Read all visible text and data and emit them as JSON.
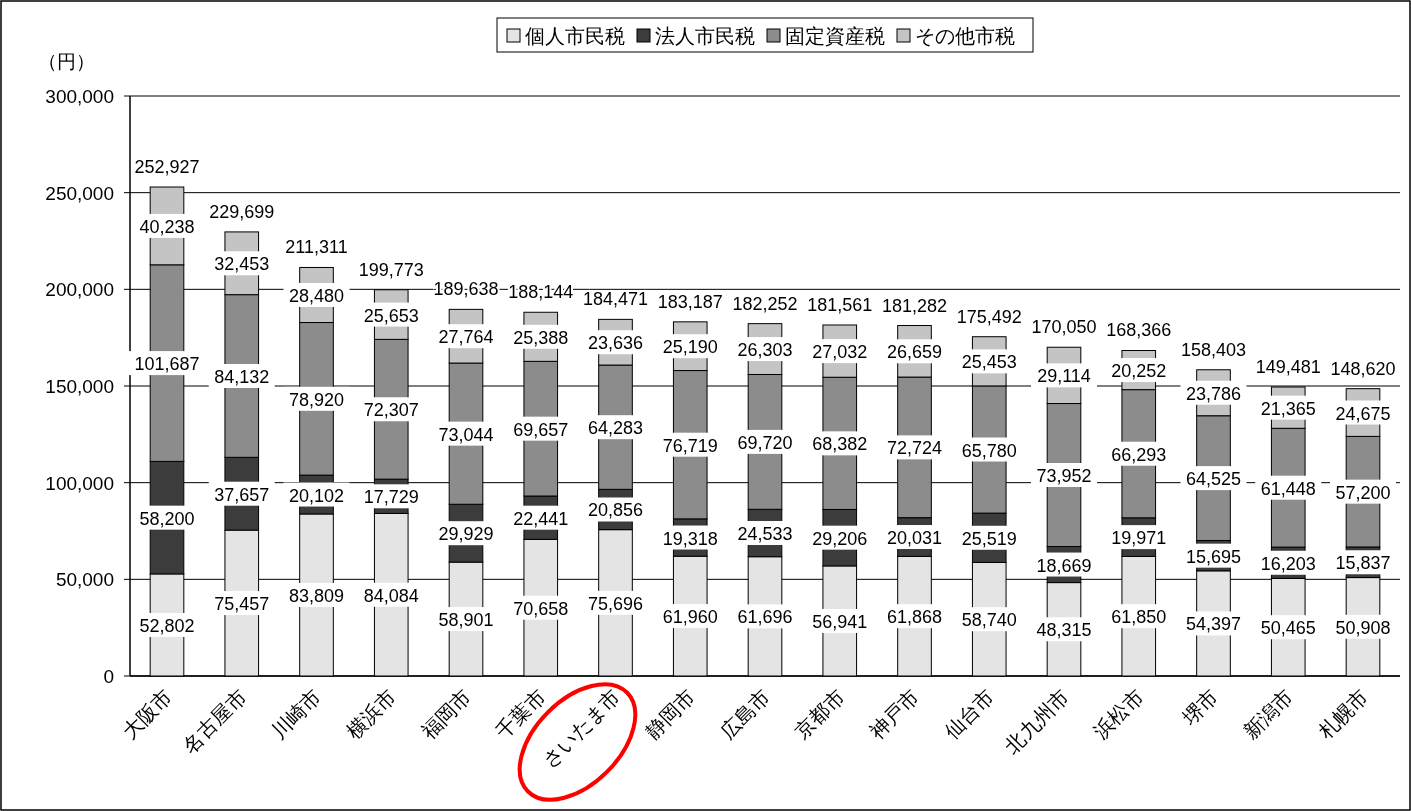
{
  "chart_data": {
    "type": "bar",
    "stacked": true,
    "ylabel": "（円）",
    "categories": [
      "大阪市",
      "名古屋市",
      "川崎市",
      "横浜市",
      "福岡市",
      "千葉市",
      "さいたま市",
      "静岡市",
      "広島市",
      "京都市",
      "神戸市",
      "仙台市",
      "北九州市",
      "浜松市",
      "堺市",
      "新潟市",
      "札幌市"
    ],
    "series": [
      {
        "name": "個人市民税",
        "color": "#e4e4e4",
        "values": [
          52802,
          75457,
          83809,
          84084,
          58901,
          70658,
          75696,
          61960,
          61696,
          56941,
          61868,
          58740,
          48315,
          61850,
          54397,
          50465,
          50908
        ],
        "value_labels": [
          "52,802",
          "75,457",
          "83,809",
          "84,084",
          "58,901",
          "70,658",
          "75,696",
          "61,960",
          "61,696",
          "56,941",
          "61,868",
          "58,740",
          "48,315",
          "61,850",
          "54,397",
          "50,465",
          "50,908"
        ]
      },
      {
        "name": "法人市民税",
        "color": "#3c3c3c",
        "values": [
          58200,
          37657,
          20102,
          17729,
          29929,
          22441,
          20856,
          19318,
          24533,
          29206,
          20031,
          25519,
          18669,
          19971,
          15695,
          16203,
          15837
        ],
        "value_labels": [
          "58,200",
          "37,657",
          "20,102",
          "17,729",
          "29,929",
          "22,441",
          "20,856",
          "19,318",
          "24,533",
          "29,206",
          "20,031",
          "25,519",
          "18,669",
          "19,971",
          "15,695",
          "16,203",
          "15,837"
        ]
      },
      {
        "name": "固定資産税",
        "color": "#8c8c8c",
        "values": [
          101687,
          84132,
          78920,
          72307,
          73044,
          69657,
          64283,
          76719,
          69720,
          68382,
          72724,
          65780,
          73952,
          66293,
          64525,
          61448,
          57200
        ],
        "value_labels": [
          "101,687",
          "84,132",
          "78,920",
          "72,307",
          "73,044",
          "69,657",
          "64,283",
          "76,719",
          "69,720",
          "68,382",
          "72,724",
          "65,780",
          "73,952",
          "66,293",
          "64,525",
          "61,448",
          "57,200"
        ]
      },
      {
        "name": "その他市税",
        "color": "#c4c4c4",
        "values": [
          40238,
          32453,
          28480,
          25653,
          27764,
          25388,
          23636,
          25190,
          26303,
          27032,
          26659,
          25453,
          29114,
          20252,
          23786,
          21365,
          24675
        ],
        "value_labels": [
          "40,238",
          "32,453",
          "28,480",
          "25,653",
          "27,764",
          "25,388",
          "23,636",
          "25,190",
          "26,303",
          "27,032",
          "26,659",
          "25,453",
          "29,114",
          "20,252",
          "23,786",
          "21,365",
          "24,675"
        ]
      }
    ],
    "totals": [
      "252,927",
      "229,699",
      "211,311",
      "199,773",
      "189,638",
      "188,144",
      "184,471",
      "183,187",
      "182,252",
      "181,561",
      "181,282",
      "175,492",
      "170,050",
      "168,366",
      "158,403",
      "149,481",
      "148,620"
    ],
    "ylim": [
      0,
      300000
    ],
    "yticks": [
      0,
      {
        "value": 50000,
        "label": "50,000"
      },
      {
        "value": 100000,
        "label": "100,000"
      },
      {
        "value": 150000,
        "label": "150,000"
      },
      {
        "value": 200000,
        "label": "200,000"
      },
      {
        "value": 250000,
        "label": "250,000"
      },
      {
        "value": 300000,
        "label": "300,000"
      }
    ],
    "grid": "y",
    "legend": "top"
  }
}
